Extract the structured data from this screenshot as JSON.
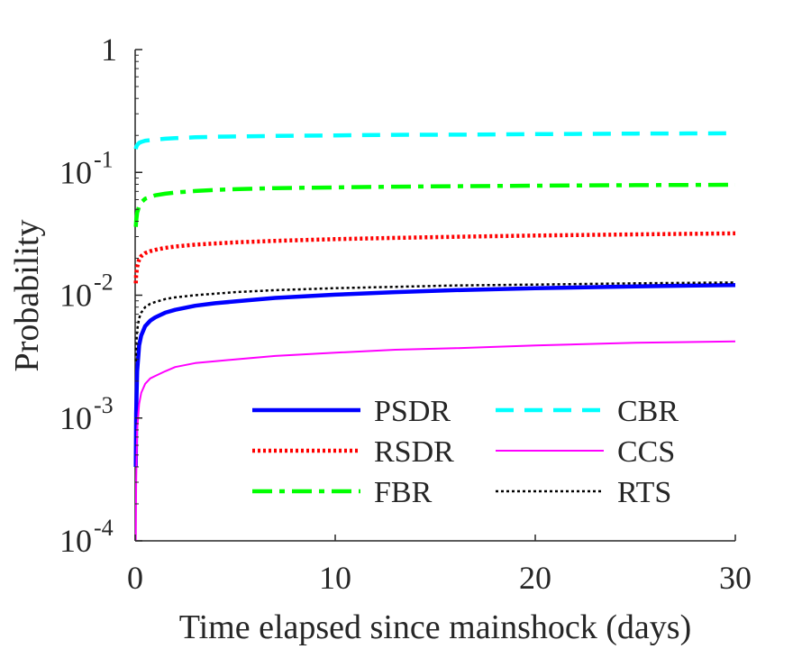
{
  "chart_data": {
    "type": "line",
    "title": "",
    "xlabel": "Time elapsed since mainshock (days)",
    "ylabel": "Probability",
    "xlim": [
      0,
      30
    ],
    "ylim": [
      0.0001,
      1
    ],
    "yscale": "log",
    "grid": false,
    "legend_position": "bottom-right",
    "x_ticks": [
      {
        "value": 0,
        "label": "0"
      },
      {
        "value": 10,
        "label": "10"
      },
      {
        "value": 20,
        "label": "20"
      },
      {
        "value": 30,
        "label": "30"
      }
    ],
    "y_ticks": [
      {
        "value": 0.0001,
        "base": "10",
        "exp": "-4"
      },
      {
        "value": 0.001,
        "base": "10",
        "exp": "-3"
      },
      {
        "value": 0.01,
        "base": "10",
        "exp": "-2"
      },
      {
        "value": 0.1,
        "base": "10",
        "exp": "-1"
      },
      {
        "value": 1,
        "base": "1",
        "exp": ""
      }
    ],
    "x": [
      0.03,
      0.05,
      0.1,
      0.2,
      0.3,
      0.5,
      0.75,
      1,
      1.5,
      2,
      3,
      4,
      5,
      7,
      10,
      13,
      16,
      20,
      25,
      30
    ],
    "series": [
      {
        "name": "PSDR",
        "color": "#0000ff",
        "dash": "solid",
        "width": 4.5,
        "values": [
          0.0004,
          0.0011,
          0.0024,
          0.0039,
          0.0047,
          0.0056,
          0.0062,
          0.0066,
          0.0072,
          0.0076,
          0.0082,
          0.0086,
          0.0089,
          0.0095,
          0.0101,
          0.0106,
          0.011,
          0.0114,
          0.0118,
          0.0121
        ]
      },
      {
        "name": "RSDR",
        "color": "#ff0000",
        "dash": "dotted",
        "width": 4.5,
        "values": [
          0.0125,
          0.0145,
          0.017,
          0.0195,
          0.0208,
          0.022,
          0.0228,
          0.0234,
          0.0243,
          0.0249,
          0.0258,
          0.0264,
          0.0269,
          0.0277,
          0.0286,
          0.0293,
          0.0299,
          0.0306,
          0.0313,
          0.0319
        ]
      },
      {
        "name": "FBR",
        "color": "#00ff00",
        "dash": "dashdot",
        "width": 4.5,
        "values": [
          0.036,
          0.04,
          0.047,
          0.053,
          0.057,
          0.061,
          0.063,
          0.065,
          0.067,
          0.0685,
          0.0705,
          0.072,
          0.073,
          0.0745,
          0.0755,
          0.0765,
          0.0772,
          0.078,
          0.0787,
          0.0793
        ]
      },
      {
        "name": "CBR",
        "color": "#00ffff",
        "dash": "dashed",
        "width": 4.5,
        "values": [
          0.155,
          0.16,
          0.167,
          0.174,
          0.177,
          0.181,
          0.183,
          0.185,
          0.188,
          0.19,
          0.193,
          0.195,
          0.196,
          0.198,
          0.2,
          0.202,
          0.203,
          0.205,
          0.207,
          0.208
        ]
      },
      {
        "name": "CCS",
        "color": "#ff00ff",
        "dash": "solid",
        "width": 2,
        "values": [
          0.0001,
          0.0003,
          0.0008,
          0.0013,
          0.0016,
          0.0019,
          0.0021,
          0.0022,
          0.0024,
          0.0026,
          0.0028,
          0.0029,
          0.003,
          0.0032,
          0.0034,
          0.0036,
          0.0037,
          0.0039,
          0.0041,
          0.0042
        ]
      },
      {
        "name": "RTS",
        "color": "#000000",
        "dash": "dotted",
        "width": 2.5,
        "values": [
          0.0029,
          0.0038,
          0.0052,
          0.0065,
          0.0072,
          0.008,
          0.0085,
          0.0088,
          0.0093,
          0.0096,
          0.01,
          0.0103,
          0.0106,
          0.011,
          0.0114,
          0.0117,
          0.012,
          0.0122,
          0.0125,
          0.0127
        ]
      }
    ]
  }
}
